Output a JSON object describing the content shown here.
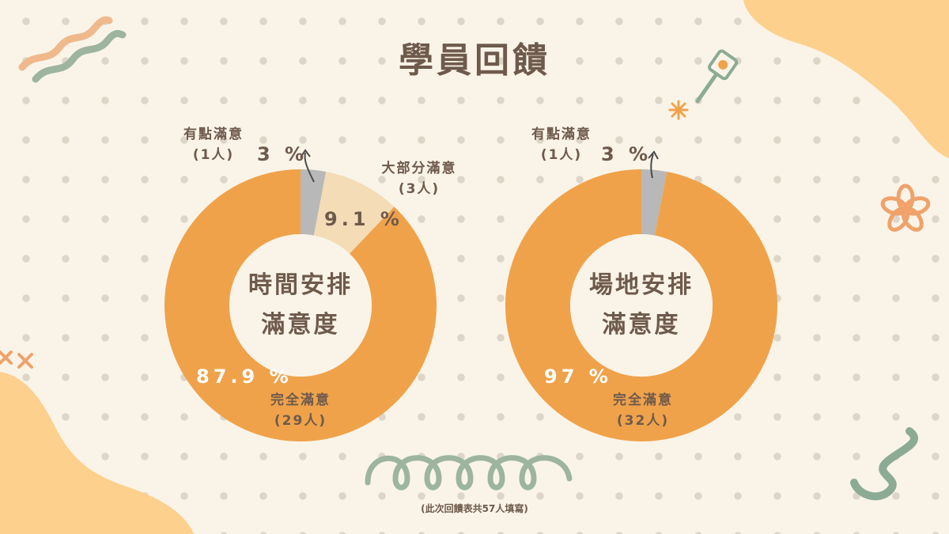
{
  "title": "學員回饋",
  "footnote": "(此次回饋表共57人填寫)",
  "colors": {
    "full": "#f0a24a",
    "most": "#f3dcb6",
    "some": "#b8b8b8",
    "text": "#6e5a4c",
    "bg": "#faf4e8"
  },
  "chart_data": [
    {
      "type": "pie",
      "donut": true,
      "title_line1": "時間安排",
      "title_line2": "滿意度",
      "slices": [
        {
          "name": "有點滿意",
          "count": "(1人)",
          "value": 3,
          "pct_label": "3 %",
          "color": "#b8b8b8"
        },
        {
          "name": "大部分滿意",
          "count": "(3人)",
          "value": 9.1,
          "pct_label": "9.1 %",
          "color": "#f3dcb6"
        },
        {
          "name": "完全滿意",
          "count": "(29人)",
          "value": 87.9,
          "pct_label": "87.9 %",
          "color": "#f0a24a"
        }
      ]
    },
    {
      "type": "pie",
      "donut": true,
      "title_line1": "場地安排",
      "title_line2": "滿意度",
      "slices": [
        {
          "name": "有點滿意",
          "count": "(1人)",
          "value": 3,
          "pct_label": "3 %",
          "color": "#b8b8b8"
        },
        {
          "name": "完全滿意",
          "count": "(32人)",
          "value": 97,
          "pct_label": "97 %",
          "color": "#f0a24a"
        }
      ]
    }
  ]
}
